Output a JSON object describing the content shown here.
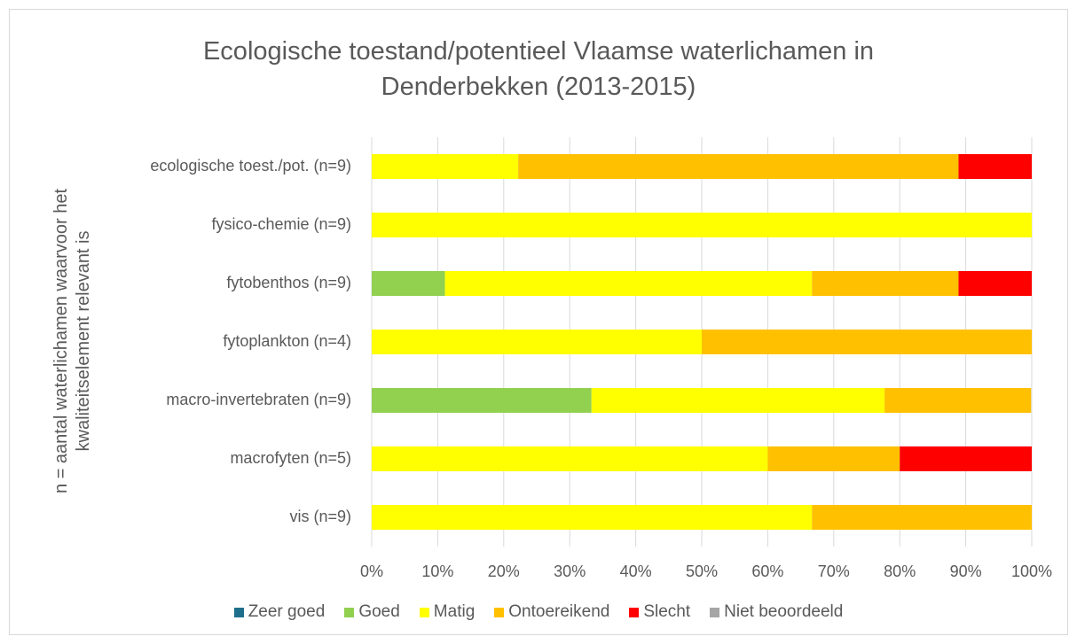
{
  "chart_data": {
    "type": "stacked-barh",
    "title": "Ecologische toestand/potentieel Vlaamse waterlichamen in Denderbekken (2013-2015)",
    "y_label": "n = aantal waterlichamen waarvoor het kwaliteitselement relevant is",
    "categories": [
      "ecologische toest./pot. (n=9)",
      "fysico-chemie (n=9)",
      "fytobenthos (n=9)",
      "fytoplankton (n=4)",
      "macro-invertebraten (n=9)",
      "macrofyten (n=5)",
      "vis (n=9)"
    ],
    "series": [
      {
        "name": "Zeer goed",
        "color": "#1f6e8c",
        "values": [
          0,
          0,
          0,
          0,
          0,
          0,
          0
        ]
      },
      {
        "name": "Goed",
        "color": "#92d050",
        "values": [
          0,
          0,
          11.1,
          0,
          33.3,
          0,
          0
        ]
      },
      {
        "name": "Matig",
        "color": "#ffff00",
        "values": [
          22.2,
          100,
          55.6,
          50,
          44.4,
          60,
          66.7
        ]
      },
      {
        "name": "Ontoereikend",
        "color": "#ffc000",
        "values": [
          66.7,
          0,
          22.2,
          50,
          22.2,
          20,
          33.3
        ]
      },
      {
        "name": "Slecht",
        "color": "#ff0000",
        "values": [
          11.1,
          0,
          11.1,
          0,
          0,
          20,
          0
        ]
      },
      {
        "name": "Niet beoordeeld",
        "color": "#a5a5a5",
        "values": [
          0,
          0,
          0,
          0,
          0,
          0,
          0
        ]
      }
    ],
    "xlim": [
      0,
      100
    ],
    "xticks": [
      {
        "value": 0,
        "label": "0%"
      },
      {
        "value": 10,
        "label": "10%"
      },
      {
        "value": 20,
        "label": "20%"
      },
      {
        "value": 30,
        "label": "30%"
      },
      {
        "value": 40,
        "label": "40%"
      },
      {
        "value": 50,
        "label": "50%"
      },
      {
        "value": 60,
        "label": "60%"
      },
      {
        "value": 70,
        "label": "70%"
      },
      {
        "value": 80,
        "label": "80%"
      },
      {
        "value": 90,
        "label": "90%"
      },
      {
        "value": 100,
        "label": "100%"
      }
    ],
    "grid": true,
    "legend": "bottom"
  }
}
